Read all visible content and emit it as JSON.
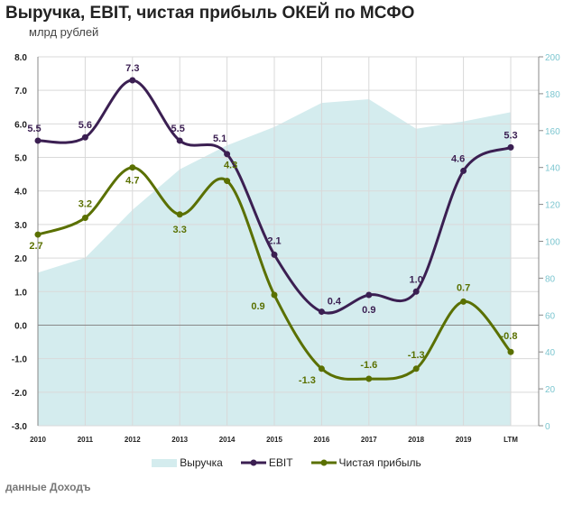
{
  "title": "Выручка, EBIT, чистая прибыль ОКЕЙ по МСФО",
  "subtitle": "млрд рублей",
  "source": "данные Доходъ",
  "chart_data": {
    "type": "line",
    "categories": [
      "2010",
      "2011",
      "2012",
      "2013",
      "2014",
      "2015",
      "2016",
      "2017",
      "2018",
      "2019",
      "LTM"
    ],
    "left_axis": {
      "ylim": [
        -3,
        8
      ],
      "ticks": [
        "-3.0",
        "-2.0",
        "-1.0",
        "0.0",
        "1.0",
        "2.0",
        "3.0",
        "4.0",
        "5.0",
        "6.0",
        "7.0",
        "8.0"
      ]
    },
    "right_axis": {
      "ylim": [
        0,
        200
      ],
      "ticks": [
        "0",
        "20",
        "40",
        "60",
        "80",
        "100",
        "120",
        "140",
        "160",
        "180",
        "200"
      ]
    },
    "grid": true,
    "legend": "bottom",
    "series": [
      {
        "name": "Выручка",
        "type": "area",
        "axis": "right",
        "color": "#d4ecee",
        "values": [
          83,
          91,
          117,
          139,
          152,
          162,
          175,
          177,
          161,
          165,
          170
        ]
      },
      {
        "name": "EBIT",
        "type": "line",
        "axis": "left",
        "color": "#3b1f52",
        "values": [
          5.5,
          5.6,
          7.3,
          5.5,
          5.1,
          2.1,
          0.4,
          0.9,
          1.0,
          4.6,
          5.3
        ],
        "labels": [
          "5.5",
          "5.6",
          "7.3",
          "5.5",
          "5.1",
          "2.1",
          "0.4",
          "0.9",
          "1.0",
          "4.6",
          "5.3"
        ]
      },
      {
        "name": "Чистая прибыль",
        "type": "line",
        "axis": "left",
        "color": "#5a7000",
        "values": [
          2.7,
          3.2,
          4.7,
          3.3,
          4.3,
          0.9,
          -1.3,
          -1.6,
          -1.3,
          0.7,
          -0.8
        ],
        "labels": [
          "2.7",
          "3.2",
          "4.7",
          "3.3",
          "4.3",
          "0.9",
          "-1.3",
          "-1.6",
          "-1.3",
          "0.7",
          "-0.8"
        ]
      }
    ]
  }
}
